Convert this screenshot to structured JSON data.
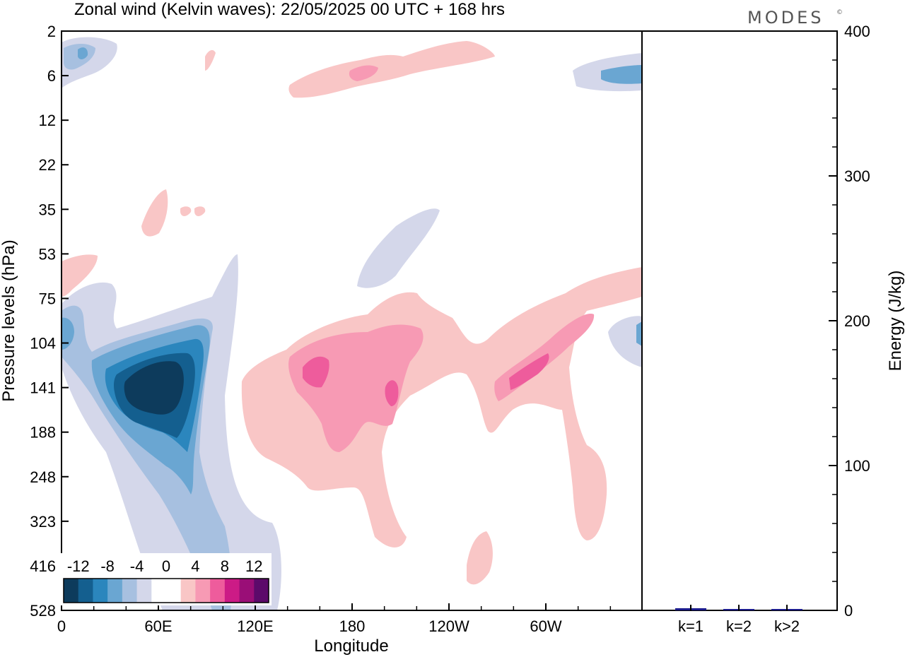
{
  "title": "Zonal wind (Kelvin waves):  22/05/2025  00 UTC  + 168 hrs",
  "logo": "MODES",
  "logo_mark": "©",
  "chart_data": [
    {
      "type": "heatmap",
      "xlabel": "Longitude",
      "ylabel": "Pressure levels (hPa)",
      "x_ticks": [
        "0",
        "60E",
        "120E",
        "180",
        "120W",
        "60W"
      ],
      "y_ticks": [
        "2",
        "6",
        "12",
        "22",
        "35",
        "53",
        "75",
        "104",
        "141",
        "188",
        "248",
        "323",
        "416",
        "528"
      ],
      "y_scale": "log (pressure, top = 2 hPa)",
      "colorbar": {
        "labels": [
          "-12",
          "-8",
          "-4",
          "0",
          "4",
          "8",
          "12"
        ],
        "colors": [
          "#0d3b5c",
          "#145f8f",
          "#2b86bd",
          "#6aa6d2",
          "#a7c0e0",
          "#d4d7ea",
          "#ffffff",
          "#ffffff",
          "#f9c6c6",
          "#f79ab4",
          "#ee5c9c",
          "#cc1b86",
          "#9a0e77",
          "#5c0a6a"
        ]
      },
      "features": [
        {
          "name": "negative-core",
          "lon_range": [
            30,
            90
          ],
          "p_range": [
            50,
            530
          ],
          "min_value": -14
        },
        {
          "name": "positive-region",
          "lon_range": [
            110,
            315
          ],
          "p_range": [
            70,
            420
          ],
          "max_value": 10
        },
        {
          "name": "upper-positive-band",
          "lon_range": [
            140,
            260
          ],
          "p_range": [
            3,
            9
          ],
          "max_value": 7
        }
      ]
    },
    {
      "type": "bar",
      "categories": [
        "k=1",
        "k=2",
        "k>2"
      ],
      "values": [
        1.5,
        0.5,
        0.4
      ],
      "ylabel": "Energy (J/kg)",
      "ylim": [
        0,
        400
      ],
      "y_ticks": [
        "0",
        "100",
        "200",
        "300",
        "400"
      ],
      "bar_color": "#1a1a8c"
    }
  ]
}
